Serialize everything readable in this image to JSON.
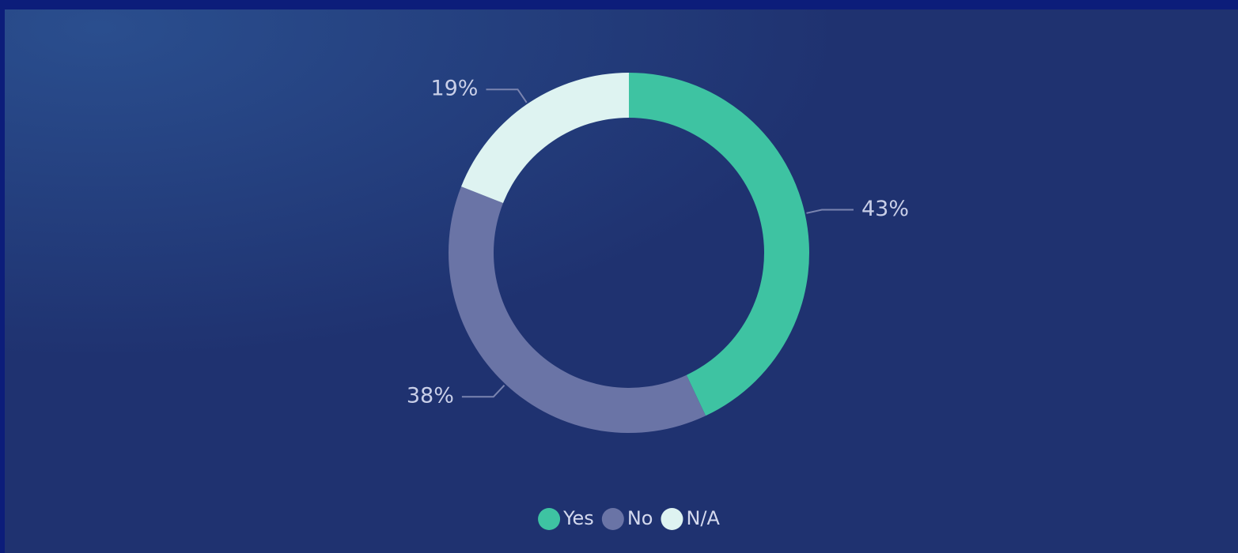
{
  "chart_data": {
    "type": "donut",
    "categories": [
      "Yes",
      "No",
      "N/A"
    ],
    "values": [
      43,
      38,
      19
    ],
    "value_labels": [
      "43%",
      "38%",
      "19%"
    ],
    "colors": [
      "#3ec3a2",
      "#6a74a6",
      "#def3f1"
    ],
    "legend": "bottom"
  }
}
